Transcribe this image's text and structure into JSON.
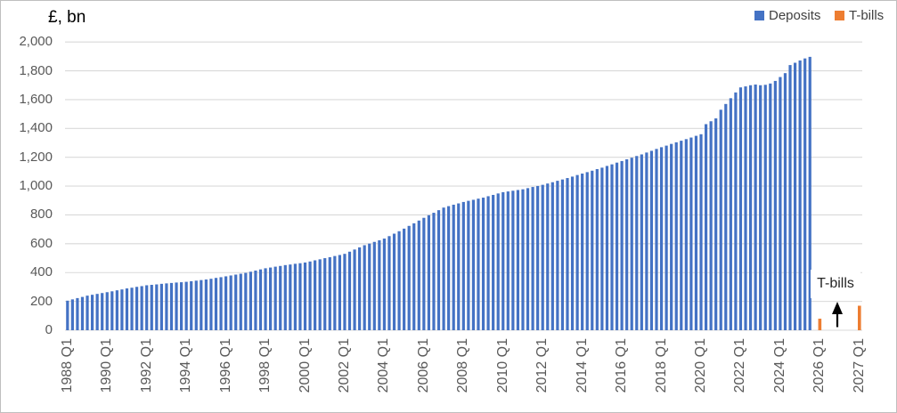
{
  "title": "£, bn",
  "legend": {
    "deposits_label": "Deposits",
    "tbills_label": "T-bills"
  },
  "annotation": {
    "text": "T-bills"
  },
  "colors": {
    "deposits": "#4472C4",
    "tbills": "#ED7D31",
    "gridline": "#D9D9D9",
    "axis_text": "#595959",
    "arrow": "#000000"
  },
  "chart_data": {
    "type": "bar",
    "title": "£, bn",
    "ylabel": "£, bn",
    "ylim": [
      0,
      2000
    ],
    "ytick_step": 200,
    "grid": true,
    "legend_position": "top-right",
    "x_axis_labels": [
      "1988 Q1",
      "1990 Q1",
      "1992 Q1",
      "1994 Q1",
      "1996 Q1",
      "1998 Q1",
      "2000 Q1",
      "2002 Q1",
      "2004 Q1",
      "2006 Q1",
      "2008 Q1",
      "2010 Q1",
      "2012 Q1",
      "2014 Q1",
      "2016 Q1",
      "2018 Q1",
      "2020 Q1",
      "2022 Q1",
      "2024 Q1",
      "2026 Q1",
      "2027 Q1"
    ],
    "series": [
      {
        "name": "Deposits",
        "color": "#4472C4",
        "frequency": "quarterly",
        "start": "1988 Q1",
        "end": "2025 Q3",
        "values": [
          205,
          214,
          223,
          231,
          240,
          246,
          252,
          258,
          264,
          270,
          277,
          283,
          290,
          295,
          301,
          306,
          312,
          315,
          318,
          322,
          325,
          328,
          331,
          333,
          336,
          340,
          344,
          348,
          352,
          357,
          363,
          368,
          374,
          380,
          386,
          392,
          398,
          406,
          414,
          422,
          430,
          435,
          441,
          446,
          452,
          456,
          461,
          465,
          470,
          477,
          485,
          492,
          500,
          507,
          515,
          522,
          530,
          545,
          560,
          575,
          590,
          601,
          613,
          624,
          636,
          653,
          670,
          687,
          705,
          724,
          742,
          761,
          780,
          798,
          815,
          833,
          851,
          861,
          871,
          880,
          890,
          898,
          905,
          913,
          920,
          930,
          939,
          949,
          958,
          963,
          968,
          973,
          978,
          986,
          994,
          1001,
          1009,
          1018,
          1027,
          1037,
          1046,
          1056,
          1066,
          1077,
          1087,
          1097,
          1107,
          1118,
          1128,
          1140,
          1151,
          1163,
          1174,
          1186,
          1197,
          1209,
          1220,
          1233,
          1245,
          1258,
          1270,
          1281,
          1293,
          1304,
          1315,
          1326,
          1337,
          1349,
          1360,
          1430,
          1450,
          1470,
          1530,
          1570,
          1610,
          1650,
          1685,
          1692,
          1700,
          1705,
          1700,
          1703,
          1712,
          1730,
          1757,
          1784,
          1840,
          1856,
          1872,
          1886,
          1897
        ]
      },
      {
        "name": "T-bills",
        "color": "#ED7D31",
        "points": [
          {
            "category": "2026 Q1",
            "value": 80
          },
          {
            "category": "2027 Q1",
            "value": 170
          }
        ]
      }
    ]
  }
}
